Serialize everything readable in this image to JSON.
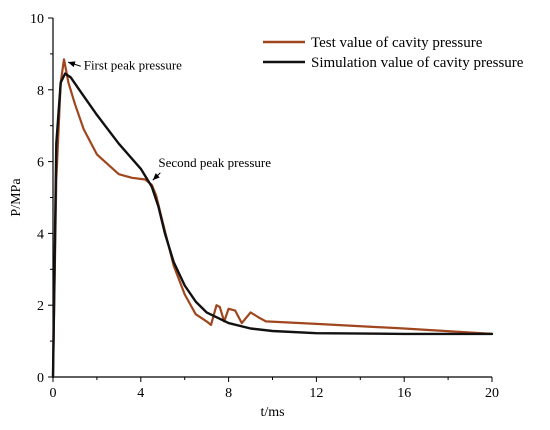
{
  "chart_data": {
    "type": "line",
    "xlabel": "t/ms",
    "ylabel": "P/MPa",
    "xlim": [
      0,
      20
    ],
    "ylim": [
      0,
      10
    ],
    "x_ticks": [
      "0",
      "4",
      "8",
      "12",
      "16",
      "20"
    ],
    "y_ticks": [
      "0",
      "2",
      "4",
      "6",
      "8",
      "10"
    ],
    "grid": false,
    "legend_position": "top-right",
    "series": [
      {
        "name": "Test value of cavity pressure",
        "color": "#a0461e",
        "x": [
          0.0,
          0.15,
          0.35,
          0.5,
          0.7,
          1.0,
          1.4,
          2.0,
          3.0,
          3.6,
          4.2,
          4.5,
          4.7,
          5.0,
          5.5,
          6.0,
          6.5,
          7.0,
          7.2,
          7.45,
          7.6,
          7.8,
          8.0,
          8.3,
          8.6,
          9.0,
          9.4,
          9.7,
          12.0,
          16.0,
          20.0
        ],
        "y": [
          0.0,
          5.5,
          8.2,
          8.85,
          8.2,
          7.6,
          6.9,
          6.2,
          5.65,
          5.55,
          5.5,
          5.35,
          5.05,
          4.3,
          3.1,
          2.3,
          1.75,
          1.55,
          1.45,
          2.0,
          1.95,
          1.55,
          1.9,
          1.85,
          1.5,
          1.8,
          1.65,
          1.55,
          1.48,
          1.35,
          1.2
        ]
      },
      {
        "name": "Simulation value of cavity pressure",
        "color": "#111111",
        "x": [
          0.0,
          0.15,
          0.35,
          0.55,
          0.8,
          1.2,
          2.0,
          3.0,
          4.0,
          4.5,
          4.8,
          5.1,
          5.5,
          6.0,
          6.5,
          7.0,
          8.0,
          9.0,
          10.0,
          12.0,
          16.0,
          20.0
        ],
        "y": [
          0.0,
          6.5,
          8.2,
          8.45,
          8.35,
          8.0,
          7.3,
          6.5,
          5.8,
          5.3,
          4.75,
          4.0,
          3.2,
          2.55,
          2.1,
          1.8,
          1.5,
          1.35,
          1.28,
          1.22,
          1.2,
          1.2
        ]
      }
    ],
    "annotations": [
      {
        "text": "First peak pressure",
        "x": 0.5,
        "y": 8.8,
        "label_x": 1.4,
        "label_y": 8.6
      },
      {
        "text": "Second peak pressure",
        "x": 4.5,
        "y": 5.4,
        "label_x": 4.8,
        "label_y": 5.8
      }
    ]
  }
}
